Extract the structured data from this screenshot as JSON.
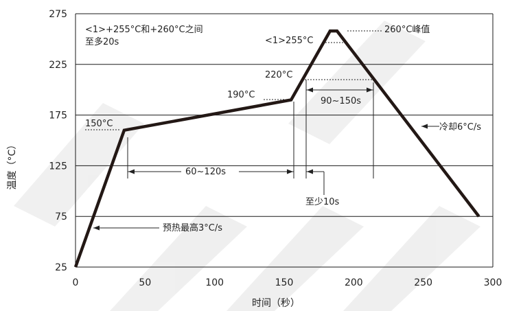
{
  "chart_data": {
    "type": "line",
    "xlabel": "时间（秒）",
    "ylabel": "温度（°C）",
    "xlim": [
      0,
      300
    ],
    "ylim": [
      25,
      275
    ],
    "x_ticks": [
      "0",
      "50",
      "100",
      "150",
      "200",
      "250",
      "300"
    ],
    "y_ticks": [
      "275",
      "225",
      "175",
      "125",
      "75",
      "25"
    ],
    "grid": "horizontal",
    "series": [
      {
        "x": [
          0,
          35,
          155,
          183,
          188,
          290
        ],
        "y": [
          25,
          160,
          190,
          258,
          258,
          75
        ]
      }
    ],
    "annotations": {
      "peak_window": "<1>+255°C和+260°C之间\n至多20s",
      "peak": "260°C峰值",
      "t255": "<1>255°C",
      "t220": "220°C",
      "t190": "190°C",
      "t150": "150°C",
      "span_90_150": "90~150s",
      "span_60_120": "60~120s",
      "min10": "至少10s",
      "cooling": "冷却6°C/s",
      "preheat": "预热最高3°C/s"
    }
  },
  "colors": {
    "curve": "#231815",
    "grid": "#1a1a1a",
    "text": "#222222"
  }
}
